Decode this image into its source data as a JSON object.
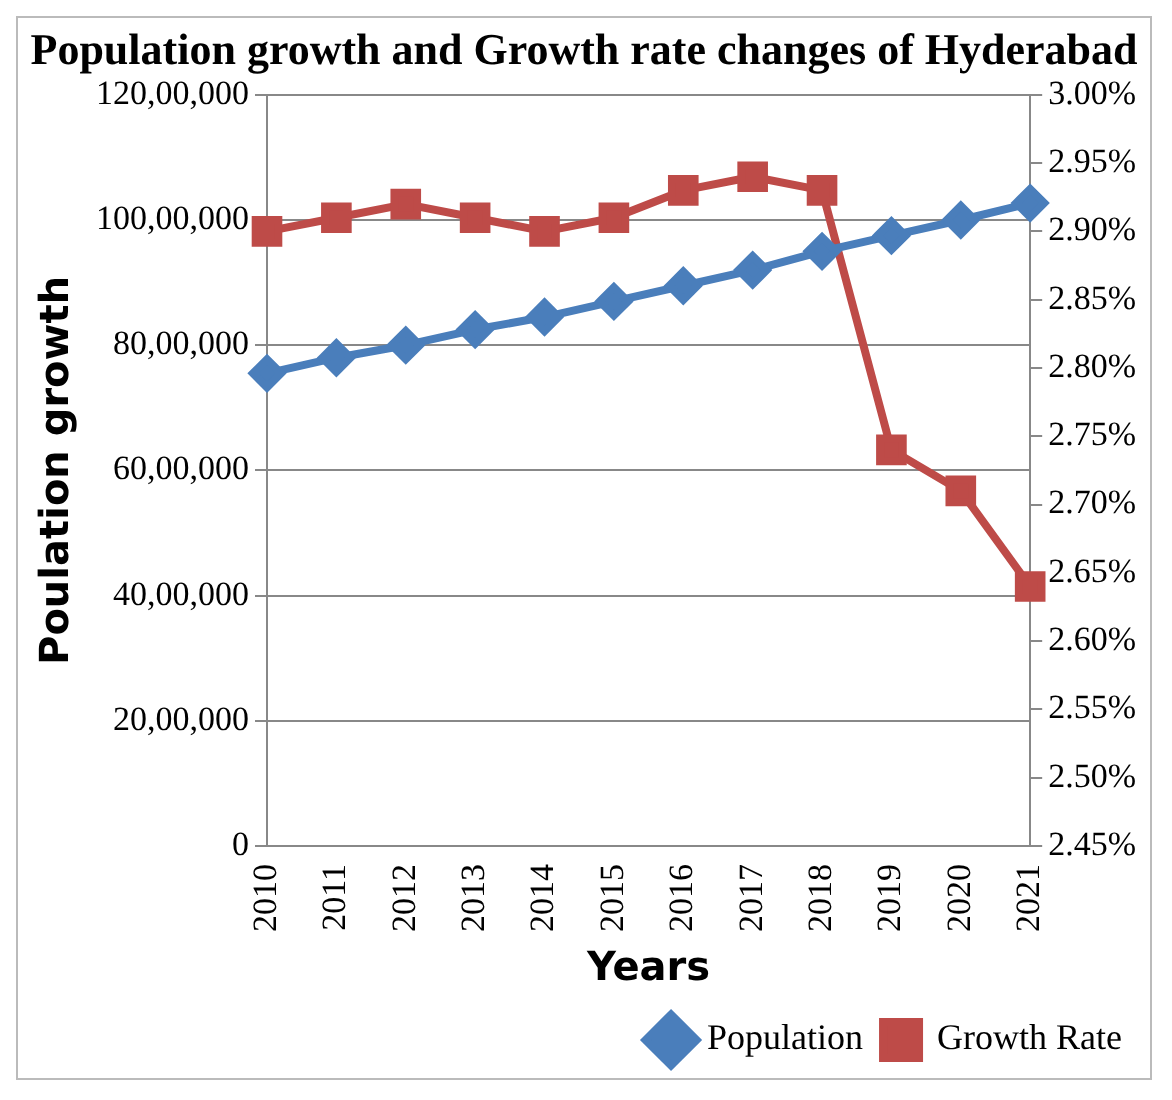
{
  "chart_data": {
    "type": "line",
    "title": "Population growth and Growth rate changes of Hyderabad",
    "xlabel": "Years",
    "ylabel": "Poulation growth",
    "categories": [
      "2010",
      "2011",
      "2012",
      "2013",
      "2014",
      "2015",
      "2016",
      "2017",
      "2018",
      "2019",
      "2020",
      "2021"
    ],
    "series": [
      {
        "name": "Population",
        "color": "#4a7ebb",
        "marker": "diamond",
        "values": [
          7550000,
          7800000,
          8000000,
          8250000,
          8450000,
          8700000,
          8950000,
          9200000,
          9500000,
          9750000,
          10000000,
          10270000
        ]
      },
      {
        "name": "Growth Rate",
        "color": "#be4b48",
        "marker": "square",
        "axis": "y2",
        "values": [
          2.9,
          2.91,
          2.92,
          2.91,
          2.9,
          2.91,
          2.93,
          2.94,
          2.93,
          2.74,
          2.71,
          2.64
        ]
      }
    ],
    "ylim": [
      0,
      12000000
    ],
    "yticks": [
      {
        "value": 0,
        "label": "0"
      },
      {
        "value": 2000000,
        "label": "20,00,000"
      },
      {
        "value": 4000000,
        "label": "40,00,000"
      },
      {
        "value": 6000000,
        "label": "60,00,000"
      },
      {
        "value": 8000000,
        "label": "80,00,000"
      },
      {
        "value": 10000000,
        "label": "100,00,000"
      },
      {
        "value": 12000000,
        "label": "120,00,000"
      }
    ],
    "y2lim": [
      2.45,
      3.0
    ],
    "y2ticks": [
      {
        "value": 2.45,
        "label": "2.45%"
      },
      {
        "value": 2.5,
        "label": "2.50%"
      },
      {
        "value": 2.55,
        "label": "2.55%"
      },
      {
        "value": 2.6,
        "label": "2.60%"
      },
      {
        "value": 2.65,
        "label": "2.65%"
      },
      {
        "value": 2.7,
        "label": "2.70%"
      },
      {
        "value": 2.75,
        "label": "2.75%"
      },
      {
        "value": 2.8,
        "label": "2.80%"
      },
      {
        "value": 2.85,
        "label": "2.85%"
      },
      {
        "value": 2.9,
        "label": "2.90%"
      },
      {
        "value": 2.95,
        "label": "2.95%"
      },
      {
        "value": 3.0,
        "label": "3.00%"
      }
    ],
    "grid": "y",
    "legend": "bottom right",
    "line_style": "solid"
  }
}
